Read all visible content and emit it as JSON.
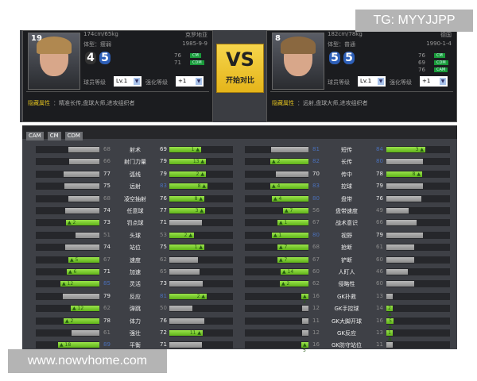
{
  "players": [
    {
      "number": "19",
      "height_weight": "174cm/65kg",
      "body_type": "体型：瘦弱",
      "nation": "克罗地亚",
      "birth": "1985-9-9",
      "weak_foot": "4",
      "skill": "5",
      "positions": [
        {
          "rating": "76",
          "pos": "CM"
        },
        {
          "rating": "71",
          "pos": "CDM"
        }
      ],
      "level_label": "球员等级",
      "level": "Lv.1",
      "enhance_label": "强化等级",
      "enhance": "+1",
      "traits_label": "隐藏属性",
      "traits": "精准长传,盘球大师,进攻组织者",
      "hair": "#b08850"
    },
    {
      "number": "8",
      "height_weight": "182cm/78kg",
      "body_type": "体型：普通",
      "nation": "德国",
      "birth": "1990-1-4",
      "weak_foot": "5",
      "skill": "5",
      "positions": [
        {
          "rating": "76",
          "pos": "CM"
        },
        {
          "rating": "69",
          "pos": "CDM"
        },
        {
          "rating": "76",
          "pos": "CAM"
        }
      ],
      "level_label": "球员等级",
      "level": "Lv.1",
      "enhance_label": "强化等级",
      "enhance": "+1",
      "traits_label": "隐藏属性",
      "traits": "远射,盘球大师,进攻组织者",
      "hair": "#8a6840"
    }
  ],
  "vs": {
    "big": "VS",
    "label": "开始对比"
  },
  "tabs": [
    "CAM",
    "CM",
    "CDM"
  ],
  "stats_left": [
    [
      "射术",
      68,
      null,
      69,
      1
    ],
    [
      "射门力量",
      66,
      null,
      79,
      13
    ],
    [
      "弧线",
      77,
      null,
      79,
      2
    ],
    [
      "远射",
      75,
      null,
      83,
      8
    ],
    [
      "凌空抽射",
      68,
      null,
      76,
      8
    ],
    [
      "任意球",
      74,
      null,
      77,
      3
    ],
    [
      "罚点球",
      73,
      2,
      71,
      null
    ],
    [
      "头球",
      51,
      null,
      53,
      2
    ],
    [
      "站位",
      74,
      null,
      75,
      1
    ],
    [
      "速度",
      67,
      5,
      62,
      null
    ],
    [
      "加速",
      71,
      6,
      65,
      null
    ],
    [
      "灵活",
      85,
      12,
      73,
      null
    ],
    [
      "反应",
      79,
      null,
      81,
      2
    ],
    [
      "弹跳",
      62,
      12,
      50,
      null
    ],
    [
      "体力",
      78,
      2,
      76,
      null
    ],
    [
      "强壮",
      61,
      null,
      72,
      11
    ],
    [
      "平衡",
      89,
      18,
      71,
      null
    ]
  ],
  "stats_right": [
    [
      "短传",
      81,
      null,
      84,
      3
    ],
    [
      "长传",
      82,
      2,
      80,
      null
    ],
    [
      "传中",
      70,
      null,
      78,
      8
    ],
    [
      "控球",
      83,
      4,
      79,
      null
    ],
    [
      "盘带",
      80,
      4,
      76,
      null
    ],
    [
      "盘带速度",
      56,
      7,
      49,
      null
    ],
    [
      "战术意识",
      67,
      1,
      66,
      null
    ],
    [
      "视野",
      80,
      1,
      79,
      null
    ],
    [
      "抢断",
      68,
      7,
      61,
      null
    ],
    [
      "铲断",
      67,
      7,
      60,
      null
    ],
    [
      "人盯人",
      60,
      14,
      46,
      null
    ],
    [
      "侵略性",
      62,
      2,
      60,
      null
    ],
    [
      "GK扑救",
      16,
      3,
      13,
      null
    ],
    [
      "GK手控球",
      12,
      null,
      14,
      2
    ],
    [
      "GK大脚开球",
      11,
      null,
      16,
      5
    ],
    [
      "GK反应",
      12,
      null,
      13,
      1
    ],
    [
      "GK防守站位",
      16,
      5,
      11,
      null
    ]
  ],
  "colors": {
    "high": "#4a6fb8",
    "normal": "#e8e8e8",
    "low": "#8a8a8a",
    "gain": "#7fd030",
    "vs": "#f0c832"
  },
  "watermarks": {
    "top": "TG: MYYJJPP",
    "bottom": "www.nowvhome.com"
  }
}
